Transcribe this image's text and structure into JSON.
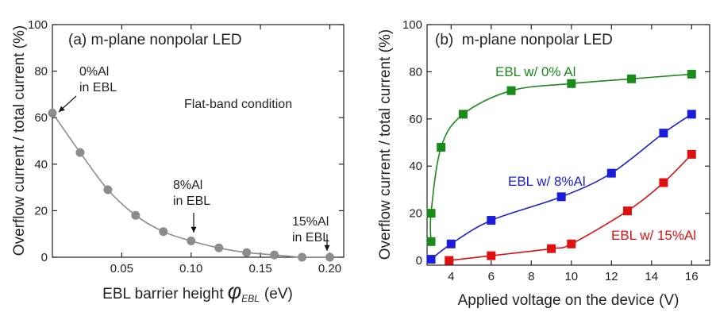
{
  "chart_data": [
    {
      "panel": "a",
      "type": "scatter",
      "title": "(a) m-plane nonpolar LED",
      "xlabel": "EBL barrier height",
      "xlabel_symbol": "φ",
      "xlabel_subscript": "EBL",
      "xlabel_unit": "(eV)",
      "ylabel": "Overflow current / total current (%)",
      "xlim": [
        0,
        0.21
      ],
      "ylim": [
        0,
        100
      ],
      "xticks": [
        "0.05",
        "0.10",
        "0.15",
        "0.20"
      ],
      "xtick_values": [
        0.05,
        0.1,
        0.15,
        0.2
      ],
      "yticks": [
        "0",
        "20",
        "40",
        "60",
        "80",
        "100"
      ],
      "ytick_values": [
        0,
        20,
        40,
        60,
        80,
        100
      ],
      "grid": false,
      "marker_color": "#8c8c8c",
      "line_color": "#8c8c8c",
      "series": [
        {
          "x": [
            0.0,
            0.02,
            0.04,
            0.06,
            0.08,
            0.1,
            0.12,
            0.14,
            0.16,
            0.18,
            0.2
          ],
          "y": [
            62,
            45,
            29,
            18,
            11,
            7,
            4,
            2,
            1,
            0,
            0
          ]
        }
      ],
      "annotations": [
        {
          "lines": [
            "0%Al",
            "in EBL"
          ],
          "point": [
            0.0,
            62
          ]
        },
        {
          "lines": [
            "8%Al",
            "in EBL"
          ],
          "point": [
            0.1,
            7
          ]
        },
        {
          "lines": [
            "15%Al",
            "in EBL"
          ],
          "point": [
            0.2,
            0
          ]
        }
      ],
      "note": "Flat-band condition"
    },
    {
      "panel": "b",
      "type": "line",
      "title": "(b)  m-plane nonpolar LED",
      "xlabel": "Applied voltage on the device (V)",
      "ylabel": "Overflow current / total current (%)",
      "xlim": [
        2.8,
        16.9
      ],
      "ylim": [
        -2,
        100
      ],
      "xticks": [
        "4",
        "6",
        "8",
        "10",
        "12",
        "14",
        "16"
      ],
      "xtick_values": [
        4,
        6,
        8,
        10,
        12,
        14,
        16
      ],
      "yticks": [
        "0",
        "20",
        "40",
        "60",
        "80",
        "100"
      ],
      "ytick_values": [
        0,
        20,
        40,
        60,
        80,
        100
      ],
      "grid": false,
      "series": [
        {
          "name": "EBL w/ 0% Al",
          "color": "#1a8a1a",
          "x": [
            3.0,
            3.0,
            3.5,
            4.6,
            7.0,
            10.0,
            13.0,
            16.0
          ],
          "y": [
            8,
            20,
            48,
            62,
            72,
            75,
            77,
            79
          ]
        },
        {
          "name": "EBL w/ 8%Al",
          "color": "#1c1cdc",
          "x": [
            3.0,
            4.0,
            6.0,
            9.5,
            12.0,
            14.6,
            16.0
          ],
          "y": [
            0.5,
            7,
            17,
            27,
            37,
            54,
            62
          ]
        },
        {
          "name": "EBL w/ 15%Al",
          "color": "#e01010",
          "x": [
            3.9,
            6.0,
            9.0,
            10.0,
            12.8,
            14.6,
            16.0
          ],
          "y": [
            0,
            2,
            5,
            7,
            21,
            33,
            45
          ]
        }
      ]
    }
  ]
}
